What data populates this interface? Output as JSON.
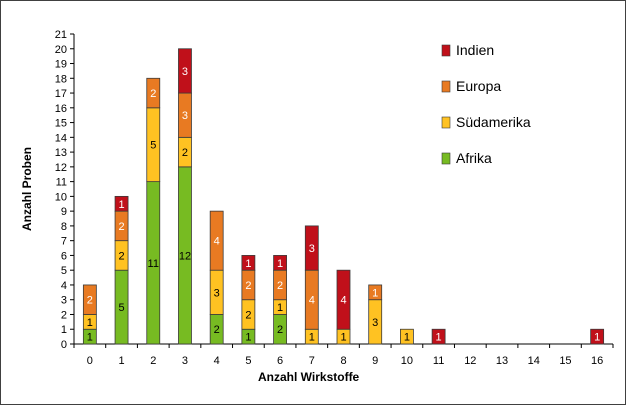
{
  "chart_data": {
    "type": "bar",
    "stacked": true,
    "xlabel": "Anzahl Wirkstoffe",
    "ylabel": "Anzahl Proben",
    "ylim": [
      0,
      21
    ],
    "yticks": [
      0,
      1,
      2,
      3,
      4,
      5,
      6,
      7,
      8,
      9,
      10,
      11,
      12,
      13,
      14,
      15,
      16,
      17,
      18,
      19,
      20,
      21
    ],
    "categories": [
      "0",
      "1",
      "2",
      "3",
      "4",
      "5",
      "6",
      "7",
      "8",
      "9",
      "10",
      "11",
      "12",
      "13",
      "14",
      "15",
      "16"
    ],
    "series": [
      {
        "name": "Afrika",
        "color": "#77bb22",
        "label_color": "#000000",
        "values": [
          1,
          5,
          11,
          12,
          2,
          1,
          2,
          0,
          0,
          0,
          0,
          0,
          0,
          0,
          0,
          0,
          0
        ]
      },
      {
        "name": "Südamerika",
        "color": "#ffc222",
        "label_color": "#000000",
        "values": [
          1,
          2,
          5,
          2,
          3,
          2,
          1,
          1,
          1,
          3,
          1,
          0,
          0,
          0,
          0,
          0,
          0
        ]
      },
      {
        "name": "Europa",
        "color": "#e87a22",
        "label_color": "#ffffff",
        "values": [
          2,
          2,
          2,
          3,
          4,
          2,
          2,
          4,
          0,
          1,
          0,
          0,
          0,
          0,
          0,
          0,
          0
        ]
      },
      {
        "name": "Indien",
        "color": "#c0101a",
        "label_color": "#ffffff",
        "values": [
          0,
          1,
          0,
          3,
          0,
          1,
          1,
          3,
          4,
          0,
          0,
          1,
          0,
          0,
          0,
          0,
          1
        ]
      }
    ],
    "legend_order": [
      "Indien",
      "Europa",
      "Südamerika",
      "Afrika"
    ],
    "legend_position": "top-right",
    "grid": false
  }
}
